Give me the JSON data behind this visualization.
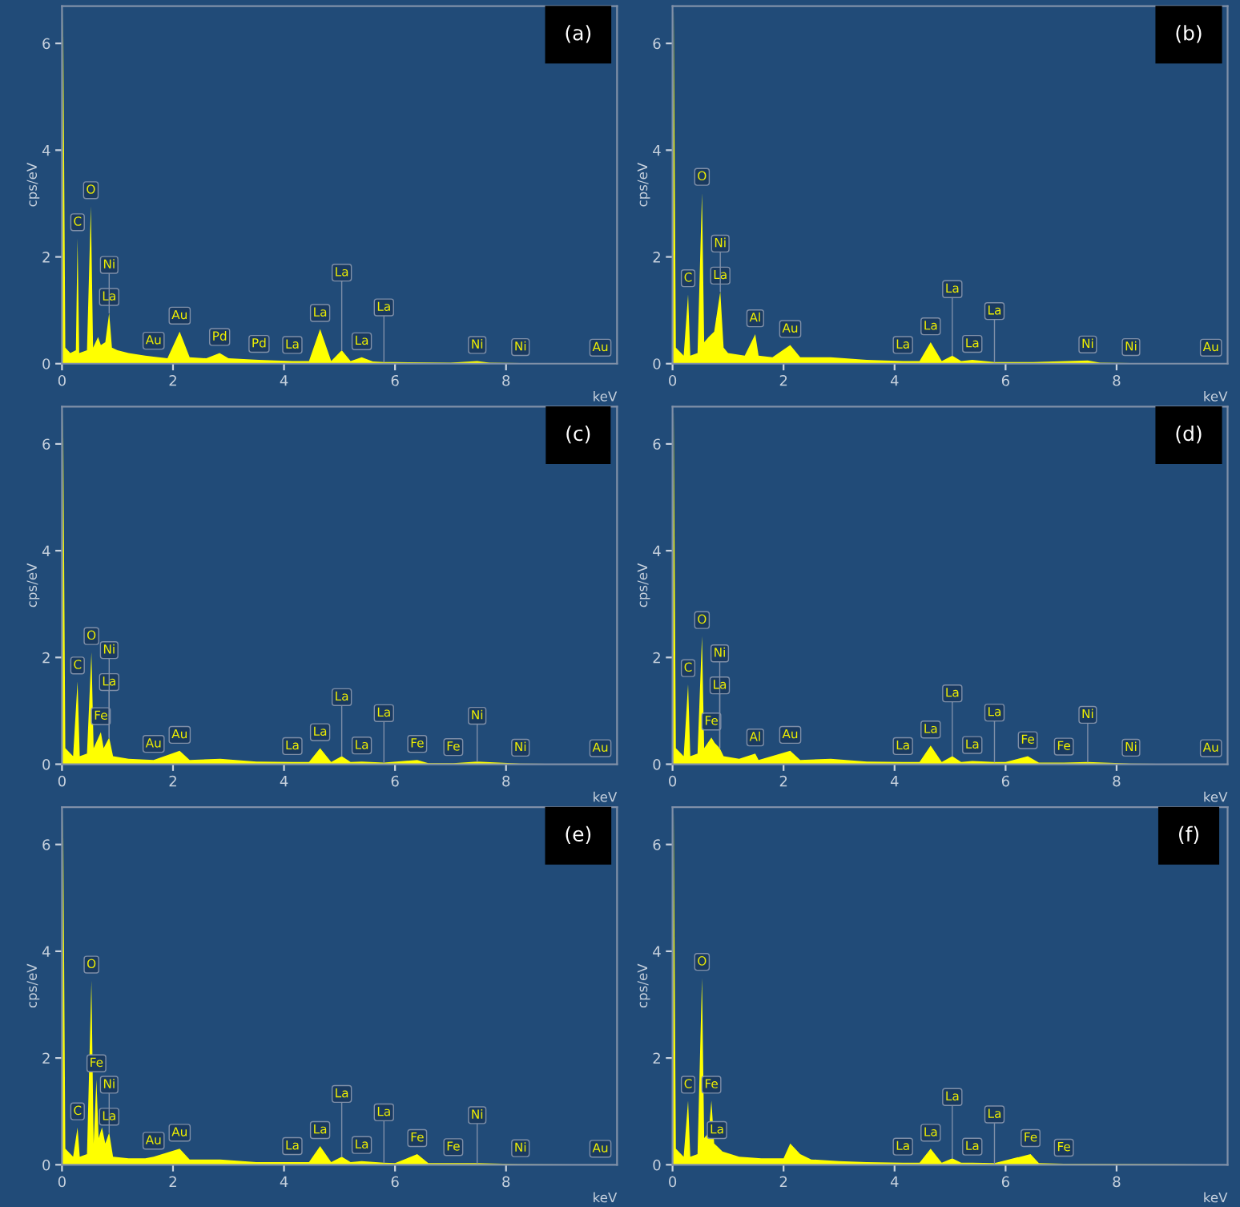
{
  "chart_data": [
    {
      "type": "area",
      "ylabel": "cps/eV",
      "xlabel": "keV",
      "xlim": [
        0,
        10
      ],
      "ylim": [
        0,
        6.7
      ],
      "xticks": [
        0,
        2,
        4,
        6,
        8
      ],
      "yticks": [
        0,
        2,
        4,
        6
      ],
      "grid": false,
      "x": [
        0,
        0.02,
        0.06,
        0.15,
        0.25,
        0.28,
        0.31,
        0.45,
        0.52,
        0.56,
        0.65,
        0.7,
        0.78,
        0.85,
        0.9,
        1.0,
        1.2,
        1.5,
        1.65,
        1.9,
        2.12,
        2.3,
        2.6,
        2.84,
        3.0,
        3.55,
        4.15,
        4.45,
        4.65,
        4.85,
        5.04,
        5.2,
        5.4,
        5.6,
        5.8,
        6.0,
        7.0,
        7.48,
        7.7,
        8.26,
        9.0,
        9.7,
        10
      ],
      "series": [
        {
          "color": "#ffff00",
          "values": [
            0,
            6.7,
            0.3,
            0.2,
            0.25,
            2.35,
            0.2,
            0.25,
            2.95,
            0.3,
            0.5,
            0.35,
            0.4,
            0.95,
            0.3,
            0.25,
            0.2,
            0.15,
            0.13,
            0.1,
            0.6,
            0.12,
            0.1,
            0.2,
            0.1,
            0.07,
            0.05,
            0.05,
            0.65,
            0.05,
            0.25,
            0.05,
            0.12,
            0.04,
            0.03,
            0.03,
            0.02,
            0.05,
            0.02,
            0.01,
            0.01,
            0,
            0
          ]
        }
      ],
      "annotations": [
        "(a)",
        {
          "text": "C",
          "x": 0.28,
          "y": 2.35
        },
        {
          "text": "O",
          "x": 0.52,
          "y": 2.95
        },
        {
          "text": "Ni",
          "x": 0.85,
          "y": 0.95
        },
        {
          "text": "La",
          "x": 0.85,
          "y": 0.95
        },
        {
          "text": "Au",
          "x": 1.65,
          "y": 0.13
        },
        {
          "text": "Au",
          "x": 2.12,
          "y": 0.6
        },
        {
          "text": "Pd",
          "x": 2.84,
          "y": 0.2
        },
        {
          "text": "Pd",
          "x": 3.55,
          "y": 0.07
        },
        {
          "text": "La",
          "x": 4.15,
          "y": 0.05
        },
        {
          "text": "La",
          "x": 4.65,
          "y": 0.65
        },
        {
          "text": "La",
          "x": 5.04,
          "y": 0.25
        },
        {
          "text": "La",
          "x": 5.4,
          "y": 0.12
        },
        {
          "text": "La",
          "x": 5.8,
          "y": 0.03
        },
        {
          "text": "Ni",
          "x": 7.48,
          "y": 0.05
        },
        {
          "text": "Ni",
          "x": 8.26,
          "y": 0.01
        },
        {
          "text": "Au",
          "x": 9.7,
          "y": 0
        }
      ]
    },
    {
      "type": "area",
      "ylabel": "cps/eV",
      "xlabel": "keV",
      "xlim": [
        0,
        10
      ],
      "ylim": [
        0,
        6.7
      ],
      "xticks": [
        0,
        2,
        4,
        6,
        8
      ],
      "yticks": [
        0,
        2,
        4,
        6
      ],
      "grid": false,
      "x": [
        0,
        0.02,
        0.06,
        0.2,
        0.28,
        0.32,
        0.45,
        0.53,
        0.57,
        0.65,
        0.75,
        0.86,
        0.92,
        1.0,
        1.3,
        1.49,
        1.55,
        1.8,
        2.12,
        2.3,
        2.85,
        3.5,
        4.15,
        4.45,
        4.65,
        4.85,
        5.04,
        5.2,
        5.4,
        5.8,
        6.5,
        7.48,
        7.7,
        8.26,
        9.0,
        9.7,
        10
      ],
      "series": [
        {
          "color": "#ffff00",
          "values": [
            0,
            6.7,
            0.3,
            0.15,
            1.3,
            0.15,
            0.2,
            3.2,
            0.4,
            0.5,
            0.6,
            1.35,
            0.3,
            0.2,
            0.15,
            0.55,
            0.15,
            0.12,
            0.35,
            0.12,
            0.12,
            0.07,
            0.05,
            0.05,
            0.4,
            0.05,
            0.15,
            0.05,
            0.07,
            0.03,
            0.03,
            0.06,
            0.02,
            0.01,
            0.01,
            0,
            0
          ]
        }
      ],
      "annotations": [
        "(b)",
        {
          "text": "C",
          "x": 0.28,
          "y": 1.3
        },
        {
          "text": "O",
          "x": 0.53,
          "y": 3.2
        },
        {
          "text": "Ni",
          "x": 0.86,
          "y": 1.35
        },
        {
          "text": "La",
          "x": 0.86,
          "y": 1.35
        },
        {
          "text": "Al",
          "x": 1.49,
          "y": 0.55
        },
        {
          "text": "Au",
          "x": 2.12,
          "y": 0.35
        },
        {
          "text": "La",
          "x": 4.15,
          "y": 0.05
        },
        {
          "text": "La",
          "x": 4.65,
          "y": 0.4
        },
        {
          "text": "La",
          "x": 5.04,
          "y": 0.15
        },
        {
          "text": "La",
          "x": 5.4,
          "y": 0.07
        },
        {
          "text": "La",
          "x": 5.8,
          "y": 0.03
        },
        {
          "text": "Ni",
          "x": 7.48,
          "y": 0.06
        },
        {
          "text": "Ni",
          "x": 8.26,
          "y": 0.01
        },
        {
          "text": "Au",
          "x": 9.7,
          "y": 0
        }
      ]
    },
    {
      "type": "area",
      "ylabel": "cps/eV",
      "xlabel": "keV",
      "xlim": [
        0,
        10
      ],
      "ylim": [
        0,
        6.7
      ],
      "xticks": [
        0,
        2,
        4,
        6,
        8
      ],
      "yticks": [
        0,
        2,
        4,
        6
      ],
      "grid": false,
      "x": [
        0,
        0.02,
        0.06,
        0.2,
        0.28,
        0.32,
        0.45,
        0.53,
        0.57,
        0.7,
        0.75,
        0.85,
        0.92,
        1.2,
        1.65,
        2.12,
        2.3,
        2.85,
        3.5,
        4.15,
        4.45,
        4.65,
        4.85,
        5.04,
        5.2,
        5.4,
        5.8,
        6.4,
        6.6,
        7.05,
        7.48,
        8.26,
        9.7,
        10
      ],
      "series": [
        {
          "color": "#ffff00",
          "values": [
            0,
            6.7,
            0.3,
            0.15,
            1.55,
            0.15,
            0.2,
            2.1,
            0.3,
            0.6,
            0.3,
            0.5,
            0.15,
            0.1,
            0.08,
            0.25,
            0.08,
            0.1,
            0.05,
            0.04,
            0.04,
            0.3,
            0.04,
            0.15,
            0.04,
            0.05,
            0.03,
            0.08,
            0.02,
            0.02,
            0.05,
            0.01,
            0,
            0
          ]
        }
      ],
      "annotations": [
        "(c)",
        {
          "text": "C",
          "x": 0.28,
          "y": 1.55
        },
        {
          "text": "O",
          "x": 0.53,
          "y": 2.1
        },
        {
          "text": "Fe",
          "x": 0.7,
          "y": 0.6
        },
        {
          "text": "Ni",
          "x": 0.85,
          "y": 0.5
        },
        {
          "text": "La",
          "x": 0.85,
          "y": 0.5
        },
        {
          "text": "Au",
          "x": 1.65,
          "y": 0.08
        },
        {
          "text": "Au",
          "x": 2.12,
          "y": 0.25
        },
        {
          "text": "La",
          "x": 4.15,
          "y": 0.04
        },
        {
          "text": "La",
          "x": 4.65,
          "y": 0.3
        },
        {
          "text": "La",
          "x": 5.04,
          "y": 0.15
        },
        {
          "text": "La",
          "x": 5.4,
          "y": 0.05
        },
        {
          "text": "La",
          "x": 5.8,
          "y": 0.03
        },
        {
          "text": "Fe",
          "x": 6.4,
          "y": 0.08
        },
        {
          "text": "Fe",
          "x": 7.05,
          "y": 0.02
        },
        {
          "text": "Ni",
          "x": 7.48,
          "y": 0.05
        },
        {
          "text": "Ni",
          "x": 8.26,
          "y": 0.01
        },
        {
          "text": "Au",
          "x": 9.7,
          "y": 0
        }
      ]
    },
    {
      "type": "area",
      "ylabel": "cps/eV",
      "xlabel": "keV",
      "xlim": [
        0,
        10
      ],
      "ylim": [
        0,
        6.7
      ],
      "xticks": [
        0,
        2,
        4,
        6,
        8
      ],
      "yticks": [
        0,
        2,
        4,
        6
      ],
      "grid": false,
      "x": [
        0,
        0.02,
        0.06,
        0.2,
        0.28,
        0.32,
        0.45,
        0.53,
        0.57,
        0.7,
        0.76,
        0.85,
        0.92,
        1.2,
        1.49,
        1.55,
        2.12,
        2.3,
        2.85,
        3.5,
        4.15,
        4.45,
        4.65,
        4.85,
        5.04,
        5.2,
        5.4,
        5.8,
        6.0,
        6.4,
        6.6,
        7.05,
        7.48,
        8.26,
        9.7,
        10
      ],
      "series": [
        {
          "color": "#ffff00",
          "values": [
            0,
            6.7,
            0.3,
            0.15,
            1.5,
            0.15,
            0.2,
            2.4,
            0.3,
            0.5,
            0.4,
            0.3,
            0.15,
            0.1,
            0.2,
            0.08,
            0.25,
            0.08,
            0.1,
            0.05,
            0.04,
            0.04,
            0.35,
            0.04,
            0.15,
            0.04,
            0.06,
            0.04,
            0.04,
            0.15,
            0.03,
            0.03,
            0.04,
            0.01,
            0,
            0
          ]
        }
      ],
      "annotations": [
        "(d)",
        {
          "text": "C",
          "x": 0.28,
          "y": 1.5
        },
        {
          "text": "O",
          "x": 0.53,
          "y": 2.4
        },
        {
          "text": "Ni",
          "x": 0.85,
          "y": 0.3
        },
        {
          "text": "Fe",
          "x": 0.7,
          "y": 0.5
        },
        {
          "text": "La",
          "x": 0.85,
          "y": 0.3
        },
        {
          "text": "Al",
          "x": 1.49,
          "y": 0.2
        },
        {
          "text": "Au",
          "x": 2.12,
          "y": 0.25
        },
        {
          "text": "La",
          "x": 4.15,
          "y": 0.04
        },
        {
          "text": "La",
          "x": 4.65,
          "y": 0.35
        },
        {
          "text": "La",
          "x": 5.04,
          "y": 0.15
        },
        {
          "text": "La",
          "x": 5.4,
          "y": 0.06
        },
        {
          "text": "La",
          "x": 5.8,
          "y": 0.04
        },
        {
          "text": "Fe",
          "x": 6.4,
          "y": 0.15
        },
        {
          "text": "Fe",
          "x": 7.05,
          "y": 0.03
        },
        {
          "text": "Ni",
          "x": 7.48,
          "y": 0.04
        },
        {
          "text": "Ni",
          "x": 8.26,
          "y": 0.01
        },
        {
          "text": "Au",
          "x": 9.7,
          "y": 0
        }
      ]
    },
    {
      "type": "area",
      "ylabel": "cps/eV",
      "xlabel": "keV",
      "xlim": [
        0,
        10
      ],
      "ylim": [
        0,
        6.7
      ],
      "xticks": [
        0,
        2,
        4,
        6,
        8
      ],
      "yticks": [
        0,
        2,
        4,
        6
      ],
      "grid": false,
      "x": [
        0,
        0.02,
        0.06,
        0.2,
        0.28,
        0.32,
        0.45,
        0.53,
        0.57,
        0.62,
        0.66,
        0.72,
        0.78,
        0.85,
        0.92,
        1.2,
        1.5,
        1.65,
        2.12,
        2.3,
        2.85,
        3.5,
        4.15,
        4.45,
        4.65,
        4.85,
        5.04,
        5.2,
        5.4,
        5.8,
        6.0,
        6.4,
        6.6,
        7.05,
        7.48,
        8.26,
        9.7,
        10
      ],
      "series": [
        {
          "color": "#ffff00",
          "values": [
            0,
            6.7,
            0.3,
            0.15,
            0.7,
            0.15,
            0.2,
            3.45,
            0.4,
            1.6,
            0.5,
            0.7,
            0.4,
            0.6,
            0.15,
            0.12,
            0.12,
            0.15,
            0.3,
            0.1,
            0.1,
            0.05,
            0.05,
            0.05,
            0.35,
            0.05,
            0.15,
            0.05,
            0.07,
            0.04,
            0.03,
            0.2,
            0.03,
            0.03,
            0.03,
            0.01,
            0,
            0
          ]
        }
      ],
      "annotations": [
        "(e)",
        {
          "text": "C",
          "x": 0.28,
          "y": 0.7
        },
        {
          "text": "O",
          "x": 0.53,
          "y": 3.45
        },
        {
          "text": "Fe",
          "x": 0.62,
          "y": 1.6
        },
        {
          "text": "Ni",
          "x": 0.85,
          "y": 0.6
        },
        {
          "text": "La",
          "x": 0.85,
          "y": 0.6
        },
        {
          "text": "Au",
          "x": 1.65,
          "y": 0.15
        },
        {
          "text": "Au",
          "x": 2.12,
          "y": 0.3
        },
        {
          "text": "La",
          "x": 4.15,
          "y": 0.05
        },
        {
          "text": "La",
          "x": 4.65,
          "y": 0.35
        },
        {
          "text": "La",
          "x": 5.04,
          "y": 0.15
        },
        {
          "text": "La",
          "x": 5.4,
          "y": 0.07
        },
        {
          "text": "La",
          "x": 5.8,
          "y": 0.04
        },
        {
          "text": "Fe",
          "x": 6.4,
          "y": 0.2
        },
        {
          "text": "Fe",
          "x": 7.05,
          "y": 0.03
        },
        {
          "text": "Ni",
          "x": 7.48,
          "y": 0.03
        },
        {
          "text": "Ni",
          "x": 8.26,
          "y": 0.01
        },
        {
          "text": "Au",
          "x": 9.7,
          "y": 0
        }
      ]
    },
    {
      "type": "area",
      "ylabel": "cps/eV",
      "xlabel": "keV",
      "xlim": [
        0,
        10
      ],
      "ylim": [
        0,
        6.7
      ],
      "xticks": [
        0,
        2,
        4,
        6,
        8
      ],
      "yticks": [
        0,
        2,
        4,
        6
      ],
      "grid": false,
      "x": [
        0,
        0.02,
        0.06,
        0.2,
        0.28,
        0.32,
        0.45,
        0.53,
        0.57,
        0.65,
        0.7,
        0.75,
        0.8,
        0.9,
        1.2,
        1.6,
        2.0,
        2.12,
        2.3,
        2.5,
        3.0,
        3.5,
        4.15,
        4.45,
        4.65,
        4.85,
        5.04,
        5.2,
        5.4,
        5.8,
        6.45,
        6.6,
        7.05,
        7.5,
        9.0,
        10
      ],
      "series": [
        {
          "color": "#ffff00",
          "values": [
            0,
            6.7,
            0.3,
            0.15,
            1.2,
            0.15,
            0.2,
            3.5,
            0.5,
            0.6,
            1.2,
            0.4,
            0.35,
            0.25,
            0.15,
            0.12,
            0.12,
            0.4,
            0.2,
            0.1,
            0.07,
            0.05,
            0.04,
            0.04,
            0.3,
            0.04,
            0.12,
            0.04,
            0.04,
            0.03,
            0.2,
            0.03,
            0.02,
            0.02,
            0.01,
            0
          ]
        }
      ],
      "annotations": [
        "(f)",
        {
          "text": "C",
          "x": 0.28,
          "y": 1.2
        },
        {
          "text": "O",
          "x": 0.53,
          "y": 3.5
        },
        {
          "text": "Fe",
          "x": 0.7,
          "y": 1.2
        },
        {
          "text": "La",
          "x": 0.8,
          "y": 0.35
        },
        {
          "text": "La",
          "x": 4.15,
          "y": 0.04
        },
        {
          "text": "La",
          "x": 4.65,
          "y": 0.3
        },
        {
          "text": "La",
          "x": 5.04,
          "y": 0.12
        },
        {
          "text": "La",
          "x": 5.4,
          "y": 0.04
        },
        {
          "text": "La",
          "x": 5.8,
          "y": 0.03
        },
        {
          "text": "Fe",
          "x": 6.45,
          "y": 0.2
        },
        {
          "text": "Fe",
          "x": 7.05,
          "y": 0.02
        }
      ]
    }
  ]
}
